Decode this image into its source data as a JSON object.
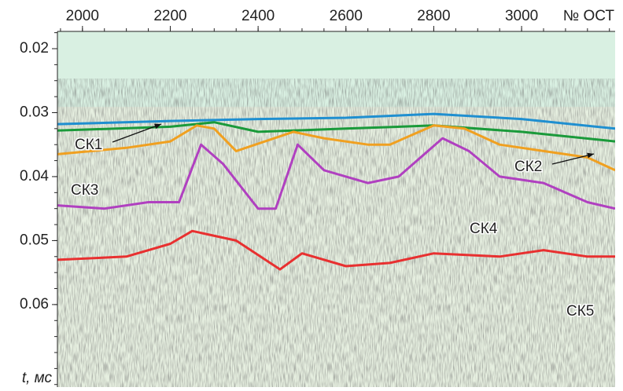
{
  "chart_data": {
    "type": "line",
    "x_label": "№ ОСТ",
    "y_label": "t, мс",
    "xlim": [
      1943,
      3213
    ],
    "xticks": [
      2000,
      2200,
      2400,
      2600,
      2800,
      3000
    ],
    "ylim": [
      0.0173,
      0.0729
    ],
    "yticks": [
      0.02,
      0.03,
      0.04,
      0.05,
      0.06
    ],
    "y_inverted": true,
    "series": [
      {
        "color": "#1f8fd0",
        "x": [
          1943,
          2200,
          2400,
          2600,
          2800,
          3000,
          3213
        ],
        "values": [
          0.0318,
          0.0313,
          0.031,
          0.0308,
          0.0302,
          0.031,
          0.0325
        ]
      },
      {
        "color": "#1a9a3a",
        "x": [
          1943,
          2200,
          2300,
          2400,
          2600,
          2800,
          3000,
          3213
        ],
        "values": [
          0.0328,
          0.0322,
          0.0315,
          0.033,
          0.0325,
          0.032,
          0.033,
          0.0345
        ]
      },
      {
        "color": "#f0a020",
        "x": [
          1943,
          2100,
          2200,
          2260,
          2300,
          2350,
          2480,
          2550,
          2650,
          2700,
          2800,
          2870,
          2950,
          3050,
          3150,
          3213
        ],
        "values": [
          0.0365,
          0.0355,
          0.0345,
          0.032,
          0.0325,
          0.036,
          0.033,
          0.034,
          0.035,
          0.035,
          0.032,
          0.0325,
          0.035,
          0.036,
          0.037,
          0.039
        ]
      },
      {
        "color": "#b040c0",
        "x": [
          1943,
          2050,
          2150,
          2220,
          2270,
          2320,
          2400,
          2440,
          2490,
          2550,
          2650,
          2720,
          2820,
          2880,
          2950,
          3050,
          3150,
          3213
        ],
        "values": [
          0.0445,
          0.045,
          0.044,
          0.044,
          0.035,
          0.038,
          0.045,
          0.045,
          0.035,
          0.039,
          0.041,
          0.04,
          0.034,
          0.036,
          0.04,
          0.041,
          0.044,
          0.045
        ]
      },
      {
        "color": "#e83030",
        "x": [
          1943,
          2100,
          2200,
          2250,
          2350,
          2450,
          2500,
          2600,
          2700,
          2800,
          2950,
          3050,
          3150,
          3213
        ],
        "values": [
          0.053,
          0.0525,
          0.0505,
          0.0485,
          0.05,
          0.0545,
          0.052,
          0.054,
          0.0535,
          0.052,
          0.0525,
          0.0515,
          0.0525,
          0.0525
        ]
      }
    ],
    "annotations": [
      "СК1",
      "СК2",
      "СК3",
      "СК4",
      "СК5"
    ]
  }
}
